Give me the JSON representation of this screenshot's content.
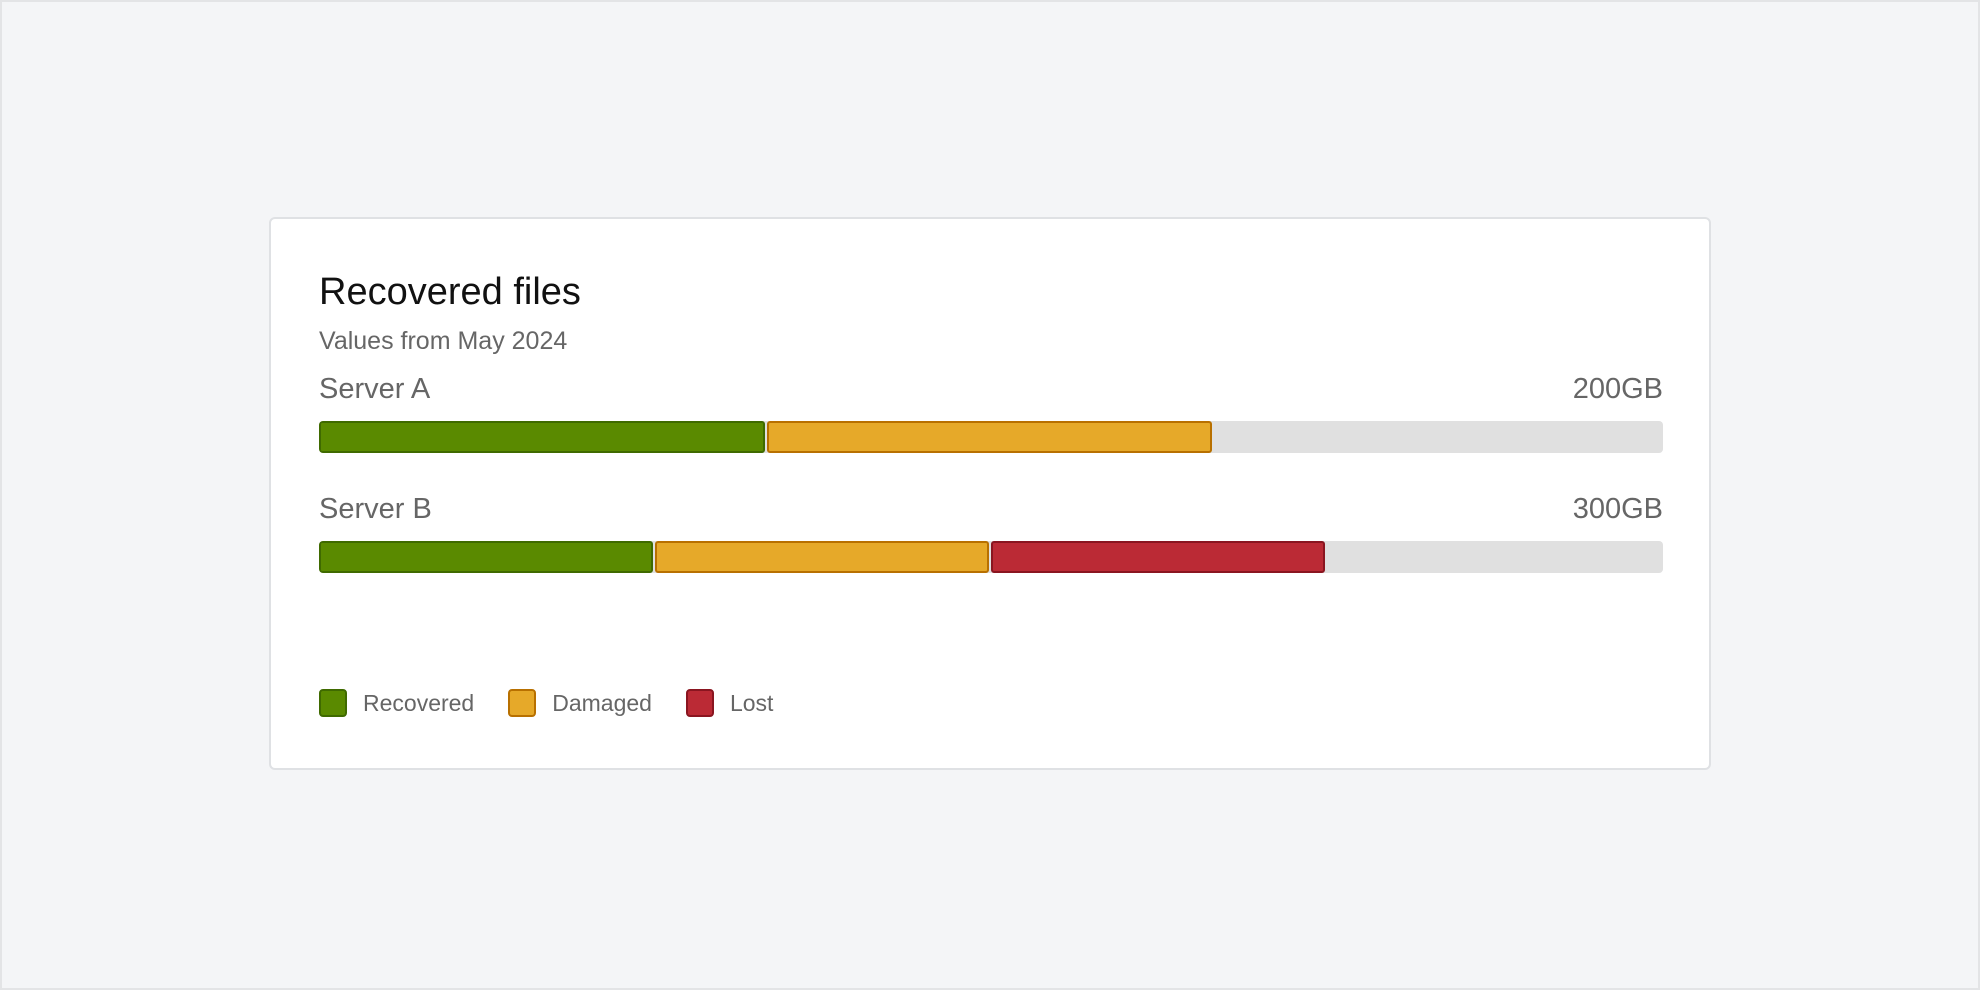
{
  "chart_data": {
    "type": "bar",
    "orientation": "horizontal-stacked",
    "title": "Recovered files",
    "subtitle": "Values from May 2024",
    "rows": [
      {
        "label": "Server A",
        "total": "200GB",
        "segments": [
          {
            "series": "Recovered",
            "percent": 33.3
          },
          {
            "series": "Damaged",
            "percent": 33.3
          }
        ]
      },
      {
        "label": "Server B",
        "total": "300GB",
        "segments": [
          {
            "series": "Recovered",
            "percent": 25
          },
          {
            "series": "Damaged",
            "percent": 25
          },
          {
            "series": "Lost",
            "percent": 25
          }
        ]
      }
    ],
    "legend": [
      {
        "name": "Recovered",
        "color": "#5a8a00",
        "border": "#3f6a00"
      },
      {
        "name": "Damaged",
        "color": "#e6a929",
        "border": "#b87000"
      },
      {
        "name": "Lost",
        "color": "#bb2a35",
        "border": "#8a1520"
      }
    ],
    "legend_position": "bottom-left",
    "track_color": "#e0e0e0"
  }
}
